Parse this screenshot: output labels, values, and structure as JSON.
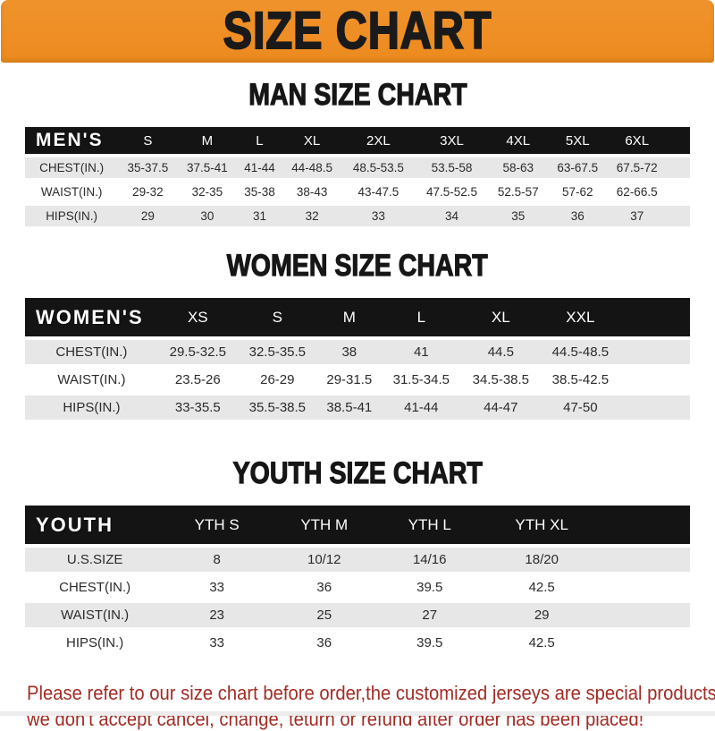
{
  "banner": {
    "title": "SIZE CHART",
    "bg_color": "#ed8c23",
    "text_color": "#1a1a1a"
  },
  "sections": [
    {
      "heading": "MAN SIZE CHART",
      "table": {
        "header_label": "MEN'S",
        "columns": [
          "S",
          "M",
          "L",
          "XL",
          "2XL",
          "3XL",
          "4XL",
          "5XL",
          "6XL"
        ],
        "rows": [
          {
            "label": "CHEST(IN.)",
            "values": [
              "35-37.5",
              "37.5-41",
              "41-44",
              "44-48.5",
              "48.5-53.5",
              "53.5-58",
              "58-63",
              "63-67.5",
              "67.5-72"
            ]
          },
          {
            "label": "WAIST(IN.)",
            "values": [
              "29-32",
              "32-35",
              "35-38",
              "38-43",
              "43-47.5",
              "47.5-52.5",
              "52.5-57",
              "57-62",
              "62-66.5"
            ]
          },
          {
            "label": "HIPS(IN.)",
            "values": [
              "29",
              "30",
              "31",
              "32",
              "33",
              "34",
              "35",
              "36",
              "37"
            ]
          }
        ]
      }
    },
    {
      "heading": "WOMEN SIZE CHART",
      "table": {
        "header_label": "WOMEN'S",
        "columns": [
          "XS",
          "S",
          "M",
          "L",
          "XL",
          "XXL"
        ],
        "rows": [
          {
            "label": "CHEST(IN.)",
            "values": [
              "29.5-32.5",
              "32.5-35.5",
              "38",
              "41",
              "44.5",
              "44.5-48.5"
            ]
          },
          {
            "label": "WAIST(IN.)",
            "values": [
              "23.5-26",
              "26-29",
              "29-31.5",
              "31.5-34.5",
              "34.5-38.5",
              "38.5-42.5"
            ]
          },
          {
            "label": "HIPS(IN.)",
            "values": [
              "33-35.5",
              "35.5-38.5",
              "38.5-41",
              "41-44",
              "44-47",
              "47-50"
            ]
          }
        ]
      }
    },
    {
      "heading": "YOUTH SIZE CHART",
      "table": {
        "header_label": "YOUTH",
        "columns": [
          "YTH S",
          "YTH M",
          "YTH L",
          "YTH XL"
        ],
        "rows": [
          {
            "label": "U.S.SIZE",
            "values": [
              "8",
              "10/12",
              "14/16",
              "18/20"
            ]
          },
          {
            "label": "CHEST(IN.)",
            "values": [
              "33",
              "36",
              "39.5",
              "42.5"
            ]
          },
          {
            "label": "WAIST(IN.)",
            "values": [
              "23",
              "25",
              "27",
              "29"
            ]
          },
          {
            "label": "HIPS(IN.)",
            "values": [
              "33",
              "36",
              "39.5",
              "42.5"
            ]
          }
        ]
      }
    }
  ],
  "footer": {
    "line1": "Please refer to our size chart before order,the customized jerseys are special products,",
    "line2": "we don't accept cancel, change, teturn or refund after order has been placed!",
    "text_color": "#a32b24"
  },
  "colors": {
    "accent_orange": "#ed8c23",
    "bar_black": "#141414",
    "row_gray": "#e7e7e7"
  }
}
